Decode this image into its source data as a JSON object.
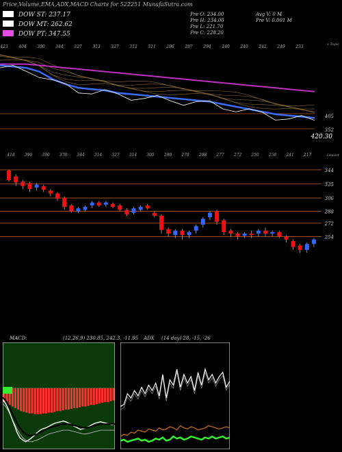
{
  "header": {
    "title": "Price,Volume,EMA,ADX,MACD Charts for 522251 MunafaSutra.com"
  },
  "legend": [
    {
      "label": "DOW ST: 237.17",
      "color": "#ffffff"
    },
    {
      "label": "DOW MT: 262.62",
      "color": "#ffffff"
    },
    {
      "label": "DOW PT: 347.55",
      "color": "#e64ce6"
    }
  ],
  "stats": {
    "open": "Pre  O: 234.00",
    "high": "Pre  H: 234.00",
    "low": "Pre  L: 221.70",
    "close": "Pre  C: 228.20",
    "avg_volume": "Avg V: 0  M",
    "prev_volume": "Pre  V: 0.001 M"
  },
  "colors": {
    "background": "#000000",
    "up_candle": "#3366ff",
    "down_candle": "#ee1111",
    "grid": "#b05a10",
    "ema_blue": "#3d6dff",
    "ema_magenta": "#c030c0",
    "macd_panel_bg": "#0a3a0a",
    "macd_hist": "#ff3030",
    "adx_plus": "#ffffff",
    "adx_minus": "#d07010",
    "adx_green": "#33ee33"
  },
  "chart_data": [
    {
      "type": "line",
      "name": "ema-panel",
      "top_ticks": [
        "423",
        "404",
        "390",
        "344",
        "327",
        "313",
        "327",
        "312",
        "311",
        "296",
        "287",
        "294",
        "240",
        "240",
        "242",
        "249",
        "233"
      ],
      "top_right_label": "x Topic",
      "right_axis_labels": [
        "405",
        "352",
        "420.30"
      ],
      "bottom_ticks": [
        "418",
        "396",
        "390",
        "378",
        "344",
        "314",
        "327",
        "314",
        "305",
        "298",
        "278",
        "298",
        "277",
        "272",
        "250",
        "258",
        "241",
        "217"
      ],
      "bottom_right_label": "Lowest",
      "series": [
        {
          "color_key": "ema_magenta",
          "values": [
            96,
            96,
            96,
            95,
            94,
            93,
            92,
            91,
            90,
            89,
            88,
            87,
            86,
            85,
            84,
            83,
            82,
            81,
            80,
            79,
            78,
            77,
            76,
            75,
            74
          ]
        },
        {
          "color_key": "ema_blue",
          "values": [
            95,
            94,
            93,
            90,
            84,
            80,
            77,
            76,
            75,
            73,
            72,
            71,
            70,
            69,
            68,
            67,
            66,
            64,
            62,
            60,
            58,
            56,
            55,
            54,
            53
          ]
        }
      ],
      "ylim": [
        40,
        110
      ]
    },
    {
      "type": "candlestick",
      "name": "price-panel",
      "right_axis_labels": [
        "344",
        "325",
        "306",
        "288",
        "272",
        "254"
      ],
      "ylim": [
        235,
        355
      ],
      "candles": [
        [
          330,
          343,
          328,
          344,
          "down"
        ],
        [
          335,
          327,
          322,
          338,
          "down"
        ],
        [
          328,
          322,
          318,
          330,
          "down"
        ],
        [
          326,
          318,
          314,
          328,
          "down"
        ],
        [
          320,
          324,
          316,
          326,
          "up"
        ],
        [
          322,
          317,
          314,
          324,
          "down"
        ],
        [
          316,
          312,
          308,
          318,
          "down"
        ],
        [
          312,
          305,
          302,
          314,
          "down"
        ],
        [
          306,
          294,
          290,
          308,
          "down"
        ],
        [
          296,
          288,
          286,
          298,
          "down"
        ],
        [
          288,
          292,
          286,
          294,
          "up"
        ],
        [
          290,
          294,
          288,
          296,
          "up"
        ],
        [
          296,
          300,
          292,
          302,
          "up"
        ],
        [
          300,
          296,
          294,
          302,
          "down"
        ],
        [
          297,
          300,
          294,
          302,
          "up"
        ],
        [
          298,
          294,
          292,
          300,
          "down"
        ],
        [
          296,
          290,
          288,
          298,
          "down"
        ],
        [
          290,
          284,
          282,
          292,
          "down"
        ],
        [
          286,
          292,
          284,
          294,
          "up"
        ],
        [
          290,
          294,
          288,
          296,
          "up"
        ],
        [
          296,
          292,
          290,
          298,
          "down"
        ],
        [
          286,
          282,
          280,
          288,
          "down"
        ],
        [
          282,
          263,
          258,
          284,
          "down"
        ],
        [
          264,
          258,
          254,
          266,
          "down"
        ],
        [
          256,
          262,
          252,
          264,
          "up"
        ],
        [
          262,
          256,
          250,
          264,
          "down"
        ],
        [
          256,
          260,
          252,
          262,
          "up"
        ],
        [
          262,
          268,
          258,
          270,
          "up"
        ],
        [
          270,
          278,
          266,
          280,
          "up"
        ],
        [
          280,
          286,
          276,
          288,
          "up"
        ],
        [
          288,
          274,
          270,
          290,
          "down"
        ],
        [
          276,
          260,
          256,
          278,
          "down"
        ],
        [
          262,
          258,
          254,
          264,
          "down"
        ],
        [
          258,
          254,
          250,
          260,
          "down"
        ],
        [
          255,
          258,
          252,
          260,
          "up"
        ],
        [
          258,
          256,
          252,
          262,
          "down"
        ],
        [
          258,
          262,
          254,
          264,
          "up"
        ],
        [
          262,
          258,
          254,
          266,
          "down"
        ],
        [
          258,
          260,
          254,
          262,
          "up"
        ],
        [
          260,
          254,
          252,
          262,
          "down"
        ],
        [
          254,
          250,
          246,
          256,
          "down"
        ],
        [
          248,
          240,
          236,
          250,
          "down"
        ],
        [
          242,
          236,
          232,
          244,
          "down"
        ],
        [
          236,
          244,
          232,
          246,
          "up"
        ],
        [
          244,
          250,
          240,
          252,
          "up"
        ]
      ]
    },
    {
      "type": "bar",
      "name": "macd-panel",
      "label": "MACD:",
      "params": "(12,26,9) 230.85, 242.3, -11.95",
      "histogram": [
        18,
        20,
        22,
        24,
        26,
        28,
        30,
        31,
        32,
        33,
        33,
        34,
        34,
        34,
        33,
        33,
        32,
        32,
        31,
        30,
        30,
        29,
        28,
        28,
        27,
        26,
        26,
        25,
        24,
        24,
        23,
        22,
        22,
        21,
        20,
        19,
        18,
        18,
        17,
        16
      ],
      "macd_line": [
        5,
        10,
        18,
        28,
        38,
        48,
        55,
        58,
        60,
        58,
        55,
        52,
        48,
        45,
        43,
        42,
        40,
        38,
        36,
        35,
        34,
        33,
        34,
        36,
        38,
        40,
        42,
        44,
        43,
        42,
        40,
        38,
        36,
        35,
        34,
        35,
        36,
        37,
        38,
        37
      ],
      "signal_line": [
        2,
        6,
        12,
        20,
        28,
        36,
        42,
        47,
        50,
        52,
        52,
        51,
        50,
        48,
        46,
        44,
        42,
        41,
        40,
        39,
        38,
        37,
        37,
        37,
        38,
        39,
        40,
        41,
        42,
        42,
        41,
        40,
        39,
        38,
        37,
        37,
        37,
        37,
        37,
        37
      ],
      "ylim": [
        -80,
        60
      ]
    },
    {
      "type": "line",
      "name": "adx-panel",
      "label": "ADX",
      "params": "(14 day) 28, -15, -26",
      "series": [
        {
          "color_key": "adx_plus",
          "values": [
            40,
            42,
            52,
            48,
            55,
            50,
            58,
            52,
            60,
            55,
            62,
            50,
            70,
            48,
            65,
            60,
            75,
            58,
            70,
            62,
            68,
            55,
            72,
            60,
            75,
            65,
            70,
            62,
            68,
            72,
            58,
            64
          ]
        },
        {
          "color_key": "adx_minus",
          "values": [
            12,
            14,
            13,
            16,
            15,
            18,
            17,
            16,
            19,
            18,
            17,
            20,
            18,
            19,
            21,
            20,
            18,
            22,
            20,
            19,
            21,
            20,
            18,
            19,
            20,
            22,
            21,
            20,
            19,
            20,
            21,
            20
          ]
        },
        {
          "color_key": "adx_green",
          "values": [
            8,
            9,
            7,
            8,
            9,
            10,
            8,
            9,
            7,
            8,
            10,
            9,
            11,
            8,
            9,
            12,
            10,
            11,
            9,
            10,
            12,
            11,
            10,
            9,
            11,
            10,
            12,
            10,
            11,
            12,
            10,
            11
          ]
        }
      ],
      "ylim": [
        0,
        100
      ]
    }
  ]
}
